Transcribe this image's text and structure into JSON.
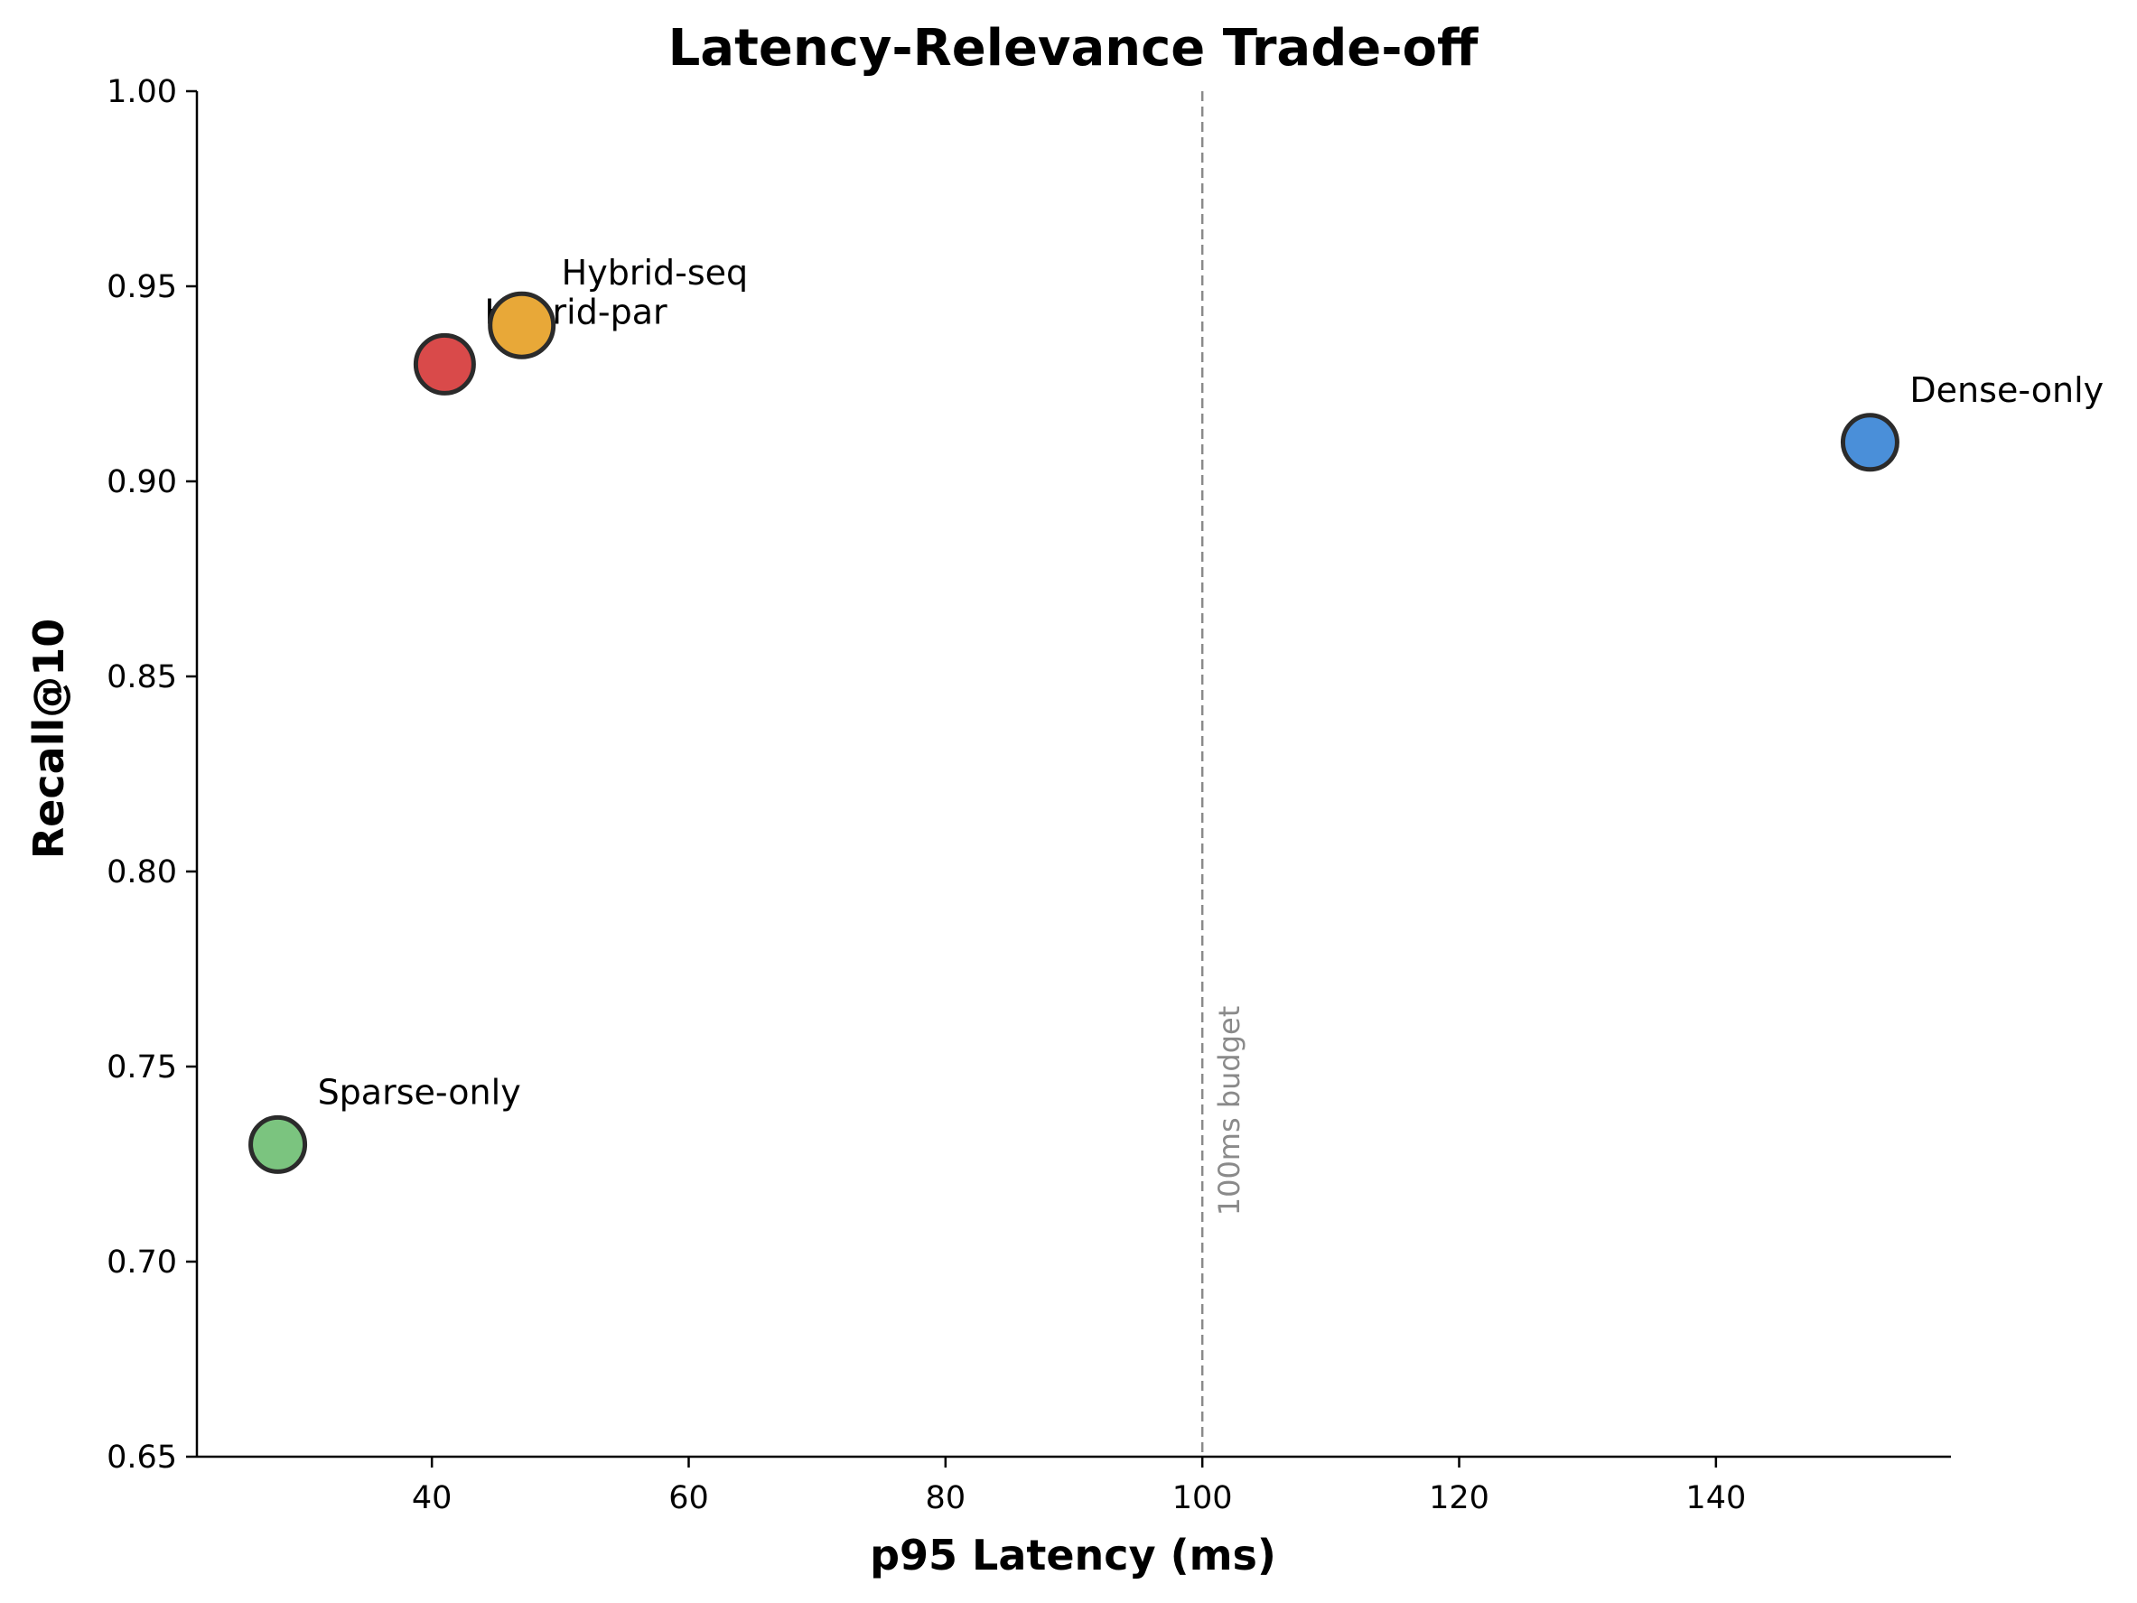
{
  "chart_data": {
    "type": "scatter",
    "title": "Latency-Relevance Trade-off",
    "xlabel": "p95 Latency (ms)",
    "ylabel": "Recall@10",
    "xlim": [
      21.7,
      158.3
    ],
    "ylim": [
      0.65,
      1.0
    ],
    "xticks": [
      40,
      60,
      80,
      100,
      120,
      140
    ],
    "yticks": [
      0.65,
      0.7,
      0.75,
      0.8,
      0.85,
      0.9,
      0.95,
      1.0
    ],
    "ytick_format": 2,
    "grid": false,
    "points": [
      {
        "label": "Sparse-only",
        "x": 28,
        "y": 0.73,
        "color": "#7bc47f",
        "size": "medium"
      },
      {
        "label": "Hybrid-par",
        "x": 41,
        "y": 0.93,
        "color": "#d94a4a",
        "size": "large"
      },
      {
        "label": "Hybrid-seq",
        "x": 47,
        "y": 0.94,
        "color": "#e8a838",
        "size": "xlarge"
      },
      {
        "label": "Dense-only",
        "x": 152,
        "y": 0.91,
        "color": "#4a8fd9",
        "size": "medium"
      }
    ],
    "reference_line": {
      "axis": "x",
      "value": 100,
      "label": "100ms budget",
      "color": "#8a8a8a",
      "style": "dashed"
    }
  }
}
